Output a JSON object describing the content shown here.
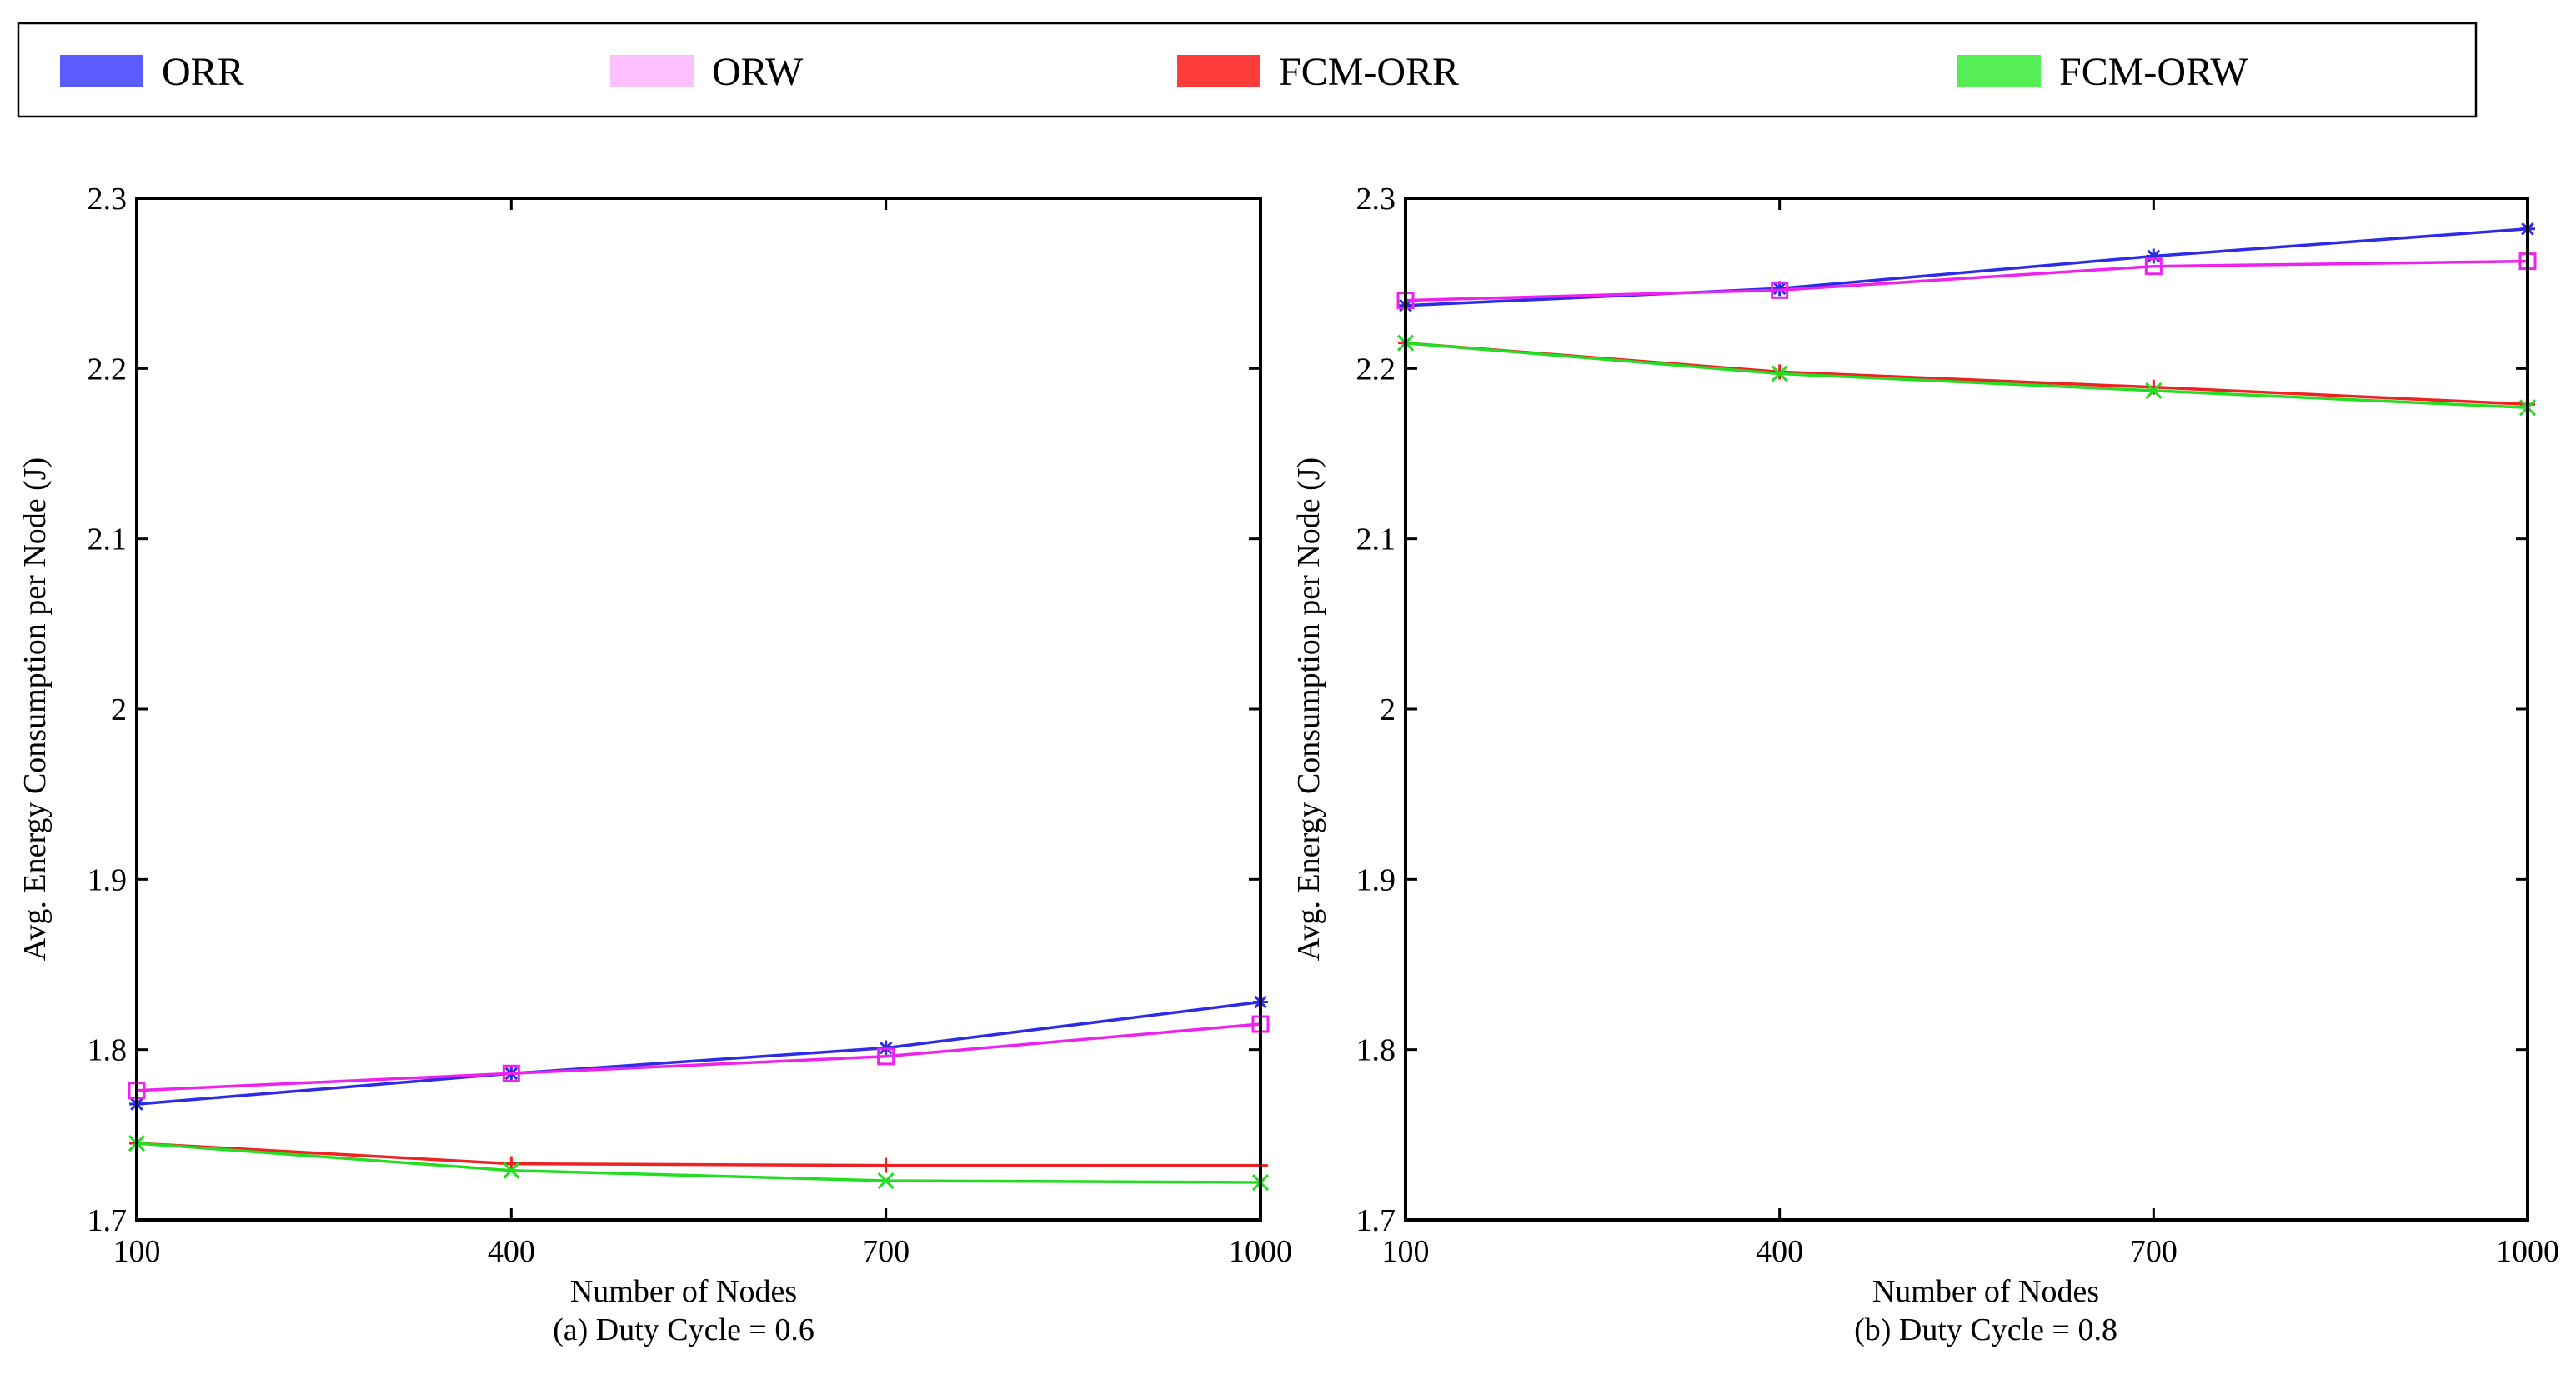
{
  "legend": {
    "entries": [
      {
        "label": "ORR",
        "color": "#5b5bff"
      },
      {
        "label": "ORW",
        "color": "#ffc0ff"
      },
      {
        "label": "FCM-ORR",
        "color": "#ff3c3c"
      },
      {
        "label": "FCM-ORW",
        "color": "#55ee55"
      }
    ]
  },
  "chart_data": [
    {
      "type": "line",
      "caption": "(a) Duty Cycle = 0.6",
      "xlabel": "Number of Nodes",
      "ylabel": "Avg. Energy Consumption per Node (J)",
      "x": [
        100,
        400,
        700,
        1000
      ],
      "xticks": [
        "100",
        "400",
        "700",
        "1000"
      ],
      "ylim": [
        1.7,
        2.3
      ],
      "yticks": [
        1.7,
        1.8,
        1.9,
        2.0,
        2.1,
        2.2,
        2.3
      ],
      "ytick_labels": [
        "1.7",
        "1.8",
        "1.9",
        "2",
        "2.1",
        "2.2",
        "2.3"
      ],
      "series": [
        {
          "name": "ORR",
          "color": "#2b2be8",
          "marker": "asterisk",
          "values": [
            1.768,
            1.786,
            1.801,
            1.828
          ]
        },
        {
          "name": "ORW",
          "color": "#ee22ee",
          "marker": "square",
          "values": [
            1.776,
            1.786,
            1.796,
            1.815
          ]
        },
        {
          "name": "FCM-ORR",
          "color": "#ee2222",
          "marker": "plus",
          "values": [
            1.745,
            1.733,
            1.732,
            1.732
          ]
        },
        {
          "name": "FCM-ORW",
          "color": "#22dd22",
          "marker": "cross",
          "values": [
            1.745,
            1.729,
            1.723,
            1.722
          ]
        }
      ]
    },
    {
      "type": "line",
      "caption": "(b) Duty Cycle = 0.8",
      "xlabel": "Number of Nodes",
      "ylabel": "Avg. Energy Consumption per Node (J)",
      "x": [
        100,
        400,
        700,
        1000
      ],
      "xticks": [
        "100",
        "400",
        "700",
        "1000"
      ],
      "ylim": [
        1.7,
        2.3
      ],
      "yticks": [
        1.7,
        1.8,
        1.9,
        2.0,
        2.1,
        2.2,
        2.3
      ],
      "ytick_labels": [
        "1.7",
        "1.8",
        "1.9",
        "2",
        "2.1",
        "2.2",
        "2.3"
      ],
      "series": [
        {
          "name": "ORR",
          "color": "#2b2be8",
          "marker": "asterisk",
          "values": [
            2.237,
            2.247,
            2.266,
            2.282
          ]
        },
        {
          "name": "ORW",
          "color": "#ee22ee",
          "marker": "square",
          "values": [
            2.24,
            2.246,
            2.26,
            2.263
          ]
        },
        {
          "name": "FCM-ORR",
          "color": "#ee2222",
          "marker": "plus",
          "values": [
            2.215,
            2.198,
            2.189,
            2.179
          ]
        },
        {
          "name": "FCM-ORW",
          "color": "#22dd22",
          "marker": "cross",
          "values": [
            2.215,
            2.197,
            2.187,
            2.177
          ]
        }
      ]
    }
  ]
}
